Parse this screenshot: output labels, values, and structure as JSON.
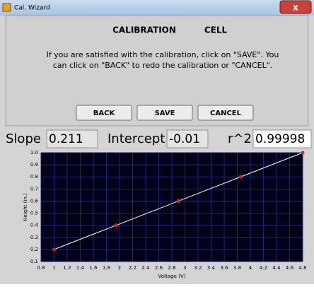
{
  "window": {
    "title": "Cal. Wizard"
  },
  "header": {
    "left": "CALIBRATION",
    "right": "CELL"
  },
  "message": [
    "If you are satisfied with the calibration, click on \"SAVE\".  You",
    "can click on \"BACK\" to redo the calibration or \"CANCEL\"."
  ],
  "buttons": [
    "BACK",
    "SAVE",
    "CANCEL"
  ],
  "fields": [
    {
      "label": "Slope",
      "value": "0.211"
    },
    {
      "label": "Intercept",
      "value": "-0.01"
    },
    {
      "label": "r^2",
      "value": "0.99998"
    }
  ],
  "chart_data": {
    "type": "line",
    "x_label": "Voltage (V)",
    "y_label": "Height (in.)",
    "x": [
      1.0,
      1.95,
      2.9,
      3.85,
      4.8
    ],
    "series": [
      {
        "color": "#e02020",
        "line_color": "#ffffff",
        "values": [
          0.2,
          0.4,
          0.6,
          0.8,
          1.0
        ]
      }
    ],
    "xlim": [
      0.8,
      4.8
    ],
    "ylim": [
      0.1,
      1.0
    ],
    "xticks": [
      0.8,
      1,
      1.2,
      1.4,
      1.6,
      1.8,
      2,
      2.2,
      2.4,
      2.6,
      2.8,
      3,
      3.2,
      3.4,
      3.6,
      3.8,
      4,
      4.2,
      4.4,
      4.6,
      4.8
    ],
    "yticks": [
      0.1,
      0.2,
      0.3,
      0.4,
      0.5,
      0.6,
      0.7,
      0.8,
      0.9,
      {
        "value": 1,
        "label": "1.0"
      }
    ],
    "grid": true,
    "background": "#000018",
    "grid_color": "#1a2a78"
  }
}
